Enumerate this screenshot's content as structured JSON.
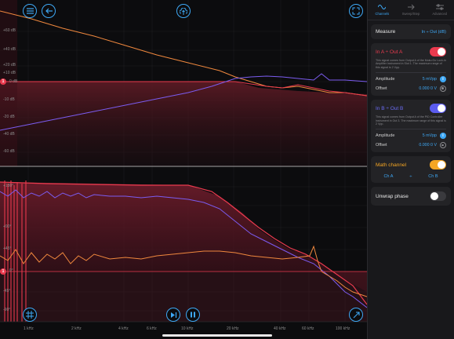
{
  "plot": {
    "ylabels_top": [
      "+60 dB",
      "+40 dB",
      "+20 dB",
      "+10 dB",
      "0 dB",
      "-10 dB",
      "-20 dB",
      "-40 dB",
      "-60 dB"
    ],
    "ylabels_bottom": [
      "+180°",
      "+90°",
      "+45°",
      "0°",
      "-45°",
      "-90°"
    ],
    "xlabels": [
      "1 kHz",
      "2 kHz",
      "4 kHz",
      "6 kHz",
      "10 kHz",
      "20 kHz",
      "40 kHz",
      "60 kHz",
      "100 kHz"
    ],
    "marker_a": "1",
    "marker_b": "1",
    "colors": {
      "ch_a": "#f0883e",
      "ch_b": "#7b5cf0",
      "math": "#ea3a4e",
      "fill": "#5a1a24",
      "accent": "#3ea8f5"
    }
  },
  "toolbar": {
    "menu_icon": "hamburger-menu-icon",
    "back_icon": "arrow-left-icon",
    "upload_icon": "cloud-upload-icon",
    "expand_icon": "expand-arrows-icon",
    "cursor_icon": "crosshair-icon",
    "step_icon": "step-forward-icon",
    "pause_icon": "pause-icon",
    "autoscale_icon": "diagonal-arrow-icon"
  },
  "sidebar": {
    "tabs": [
      {
        "label": "Channels",
        "icon": "wave-icon",
        "active": true
      },
      {
        "label": "Sweep/Step",
        "icon": "sweep-icon",
        "active": false
      },
      {
        "label": "Advanced",
        "icon": "sliders-icon",
        "active": false
      }
    ],
    "measure": {
      "label": "Measure",
      "value": "In ÷ Out (dB)"
    },
    "ch_a": {
      "title": "In A ÷ Out A",
      "enabled": true,
      "color": "#ea3a4e",
      "description": "This signal comes from Output A of the Moku:Go Lock-in Amplifier instrument in Slot 1. The maximum range of this signal is 2 Vpp.",
      "amplitude_label": "Amplitude",
      "amplitude_value": "5 mVpp",
      "offset_label": "Offset",
      "offset_value": "0.000 0 V"
    },
    "ch_b": {
      "title": "In B ÷ Out B",
      "enabled": true,
      "color": "#5b5cf0",
      "description": "This signal comes from Output A of the PID Controller instrument in Out 3. The maximum range of this signal is 2 Vpp.",
      "amplitude_label": "Amplitude",
      "amplitude_value": "5 mVpp",
      "offset_label": "Offset",
      "offset_value": "0.000 0 V"
    },
    "math": {
      "title": "Math channel",
      "enabled": true,
      "color": "#f5a623",
      "left": "Ch A",
      "op": "÷",
      "right": "Ch B"
    },
    "unwrap": {
      "label": "Unwrap phase",
      "enabled": false
    }
  }
}
